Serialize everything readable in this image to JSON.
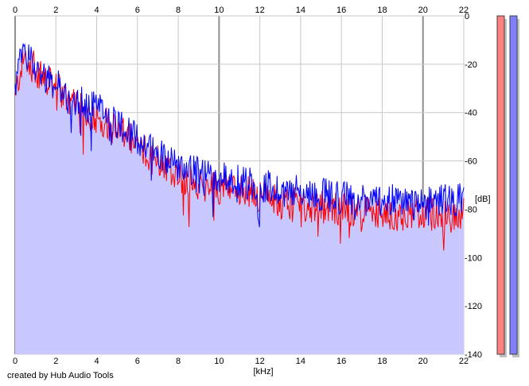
{
  "footer": {
    "credit": "created by Hub Audio Tools"
  },
  "colors": {
    "background": "#ffffff",
    "fill": "#c8c8ff",
    "grid_major": "#909090",
    "grid_minor": "#c8c8c8",
    "series_left": "#ff0000",
    "series_right": "#0000ff",
    "meter_left": "#ff8080",
    "meter_right": "#8080ff",
    "meter_shadow": "#c0c0c0"
  },
  "meters": [
    {
      "name": "left-level-meter",
      "color": "#ff8080",
      "level_fraction": 1.0
    },
    {
      "name": "right-level-meter",
      "color": "#8080ff",
      "level_fraction": 1.0
    }
  ],
  "chart_data": {
    "type": "line",
    "xlabel": "[kHz]",
    "ylabel": "[dB]",
    "xlim": [
      0,
      22
    ],
    "ylim": [
      -140,
      0
    ],
    "x_ticks": [
      0,
      2,
      4,
      6,
      8,
      10,
      12,
      14,
      16,
      18,
      20,
      22
    ],
    "x_tick_labels": [
      "0",
      "2",
      "4",
      "6",
      "8",
      "10",
      "12",
      "14",
      "16",
      "18",
      "20",
      "22"
    ],
    "y_ticks": [
      0,
      -20,
      -40,
      -60,
      -80,
      -100,
      -120,
      -140
    ],
    "y_tick_labels": [
      "0",
      "-20",
      "-40",
      "-60",
      "-80",
      "-100",
      "-120",
      "-140"
    ],
    "x_tick_positions": "top and bottom",
    "y_tick_position": "right",
    "grid": true,
    "legend": "none",
    "series": [
      {
        "color": "#ff0000",
        "x": [
          0,
          0.25,
          0.5,
          0.75,
          1,
          1.5,
          2,
          2.5,
          3,
          3.5,
          4,
          4.5,
          5,
          5.5,
          6,
          6.5,
          7,
          7.5,
          8,
          8.5,
          9,
          9.5,
          10,
          11,
          12,
          13,
          14,
          15,
          16,
          17,
          18,
          19,
          20,
          21,
          22
        ],
        "y": [
          -35,
          -22,
          -17,
          -20,
          -22,
          -27,
          -30,
          -34,
          -38,
          -40,
          -42,
          -44,
          -48,
          -50,
          -54,
          -57,
          -59,
          -62,
          -66,
          -68,
          -70,
          -70,
          -71,
          -72,
          -74,
          -77,
          -78,
          -79,
          -80,
          -81,
          -82,
          -82,
          -82,
          -82,
          -82
        ]
      },
      {
        "color": "#0000ff",
        "x": [
          0,
          0.25,
          0.5,
          0.75,
          1,
          1.5,
          2,
          2.5,
          3,
          3.5,
          4,
          4.5,
          5,
          5.5,
          6,
          6.5,
          7,
          7.5,
          8,
          8.5,
          9,
          9.5,
          10,
          11,
          12,
          13,
          14,
          15,
          16,
          17,
          18,
          19,
          20,
          21,
          22
        ],
        "y": [
          -30,
          -19,
          -14,
          -18,
          -21,
          -25,
          -28,
          -32,
          -35,
          -37,
          -38,
          -41,
          -44,
          -47,
          -51,
          -54,
          -56,
          -59,
          -62,
          -63,
          -65,
          -66,
          -67,
          -68,
          -70,
          -72,
          -73,
          -74,
          -75,
          -76,
          -76,
          -77,
          -78,
          -76,
          -76
        ]
      }
    ]
  }
}
